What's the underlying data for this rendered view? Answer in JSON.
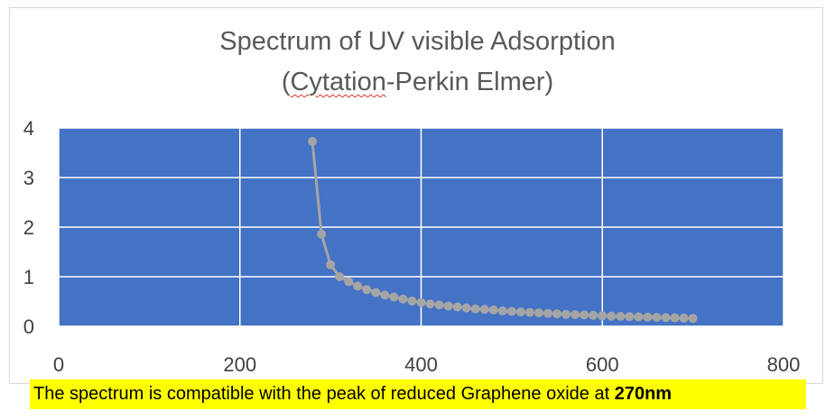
{
  "chart_data": {
    "type": "line",
    "title_line1": "Spectrum of UV visible Adsorption",
    "title_line2_prefix": "(",
    "title_line2_underlined": "Cytation",
    "title_line2_rest": "-Perkin Elmer)",
    "xlim": [
      0,
      800
    ],
    "ylim": [
      0,
      4
    ],
    "xticks": [
      "0",
      "200",
      "400",
      "600",
      "800"
    ],
    "yticks": [
      "0",
      "1",
      "2",
      "3",
      "4"
    ],
    "grid": true,
    "plot_bg": "#4472c4",
    "series_color": "#a5a5a5",
    "x": [
      280,
      290,
      300,
      310,
      320,
      330,
      340,
      350,
      360,
      370,
      380,
      390,
      400,
      410,
      420,
      430,
      440,
      450,
      460,
      470,
      480,
      490,
      500,
      510,
      520,
      530,
      540,
      550,
      560,
      570,
      580,
      590,
      600,
      610,
      620,
      630,
      640,
      650,
      660,
      670,
      680,
      690,
      700
    ],
    "y": [
      3.73,
      1.86,
      1.24,
      1.0,
      0.9,
      0.81,
      0.74,
      0.68,
      0.63,
      0.59,
      0.55,
      0.51,
      0.48,
      0.45,
      0.43,
      0.41,
      0.39,
      0.37,
      0.35,
      0.34,
      0.33,
      0.31,
      0.3,
      0.29,
      0.28,
      0.27,
      0.26,
      0.25,
      0.24,
      0.235,
      0.23,
      0.22,
      0.21,
      0.205,
      0.2,
      0.195,
      0.19,
      0.185,
      0.18,
      0.175,
      0.17,
      0.165,
      0.16
    ]
  },
  "caption": {
    "text": "The spectrum is compatible with the peak of reduced Graphene oxide at ",
    "bold": "270nm",
    "highlight": "#ffff00"
  }
}
